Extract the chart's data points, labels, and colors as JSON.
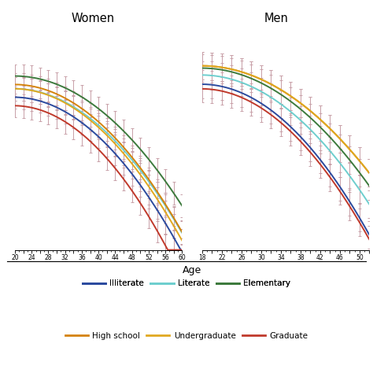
{
  "title_women": "Women",
  "title_men": "Men",
  "xlabel": "Age",
  "women_age_min": 20,
  "women_age_max": 60,
  "men_age_min": 18,
  "men_age_max": 52,
  "colors_map": {
    "illiterate": "#2b4a9e",
    "literate": "#6ecece",
    "elementary": "#3d7a3d",
    "high_school": "#d4820a",
    "undergraduate": "#e0a820",
    "graduate": "#c0392b"
  },
  "curve_order": [
    "illiterate",
    "literate",
    "elementary",
    "high_school",
    "undergraduate",
    "graduate"
  ],
  "labels": {
    "illiterate": "Illiterate",
    "literate": "Literate",
    "elementary": "Elementary",
    "high_school": "High school",
    "undergraduate": "Undergraduate",
    "graduate": "Graduate"
  },
  "women_curves": {
    "illiterate": {
      "a0": 0.72,
      "a1": -0.0003,
      "a2": -0.00045
    },
    "literate": {
      "a0": 0.76,
      "a1": -0.0002,
      "a2": -0.00042
    },
    "elementary": {
      "a0": 0.82,
      "a1": -0.0001,
      "a2": -0.00038
    },
    "high_school": {
      "a0": 0.78,
      "a1": -0.0002,
      "a2": -0.00043
    },
    "undergraduate": {
      "a0": 0.76,
      "a1": -0.0003,
      "a2": -0.00044
    },
    "graduate": {
      "a0": 0.68,
      "a1": -0.0003,
      "a2": -0.0005
    }
  },
  "men_curves": {
    "illiterate": {
      "a0": 0.91,
      "a1": -0.0001,
      "a2": -0.00028
    },
    "literate": {
      "a0": 0.93,
      "a1": -0.0001,
      "a2": -0.00024
    },
    "elementary": {
      "a0": 0.945,
      "a1": -5e-05,
      "a2": -0.00022
    },
    "high_school": {
      "a0": 0.95,
      "a1": -5e-05,
      "a2": -0.0002
    },
    "undergraduate": {
      "a0": 0.95,
      "a1": -5e-05,
      "a2": -0.0002
    },
    "graduate": {
      "a0": 0.9,
      "a1": -0.0001,
      "a2": -0.00028
    }
  },
  "women_eb_interval": 2,
  "men_eb_interval": 2,
  "women_eb_size": 0.055,
  "men_eb_size": 0.03,
  "eb_color": "#c8a0a8",
  "eb_lw": 0.7,
  "eb_capsize": 1.5,
  "line_lw": 1.4,
  "women_ylim": [
    0.0,
    1.02
  ],
  "men_ylim": [
    0.55,
    1.02
  ]
}
